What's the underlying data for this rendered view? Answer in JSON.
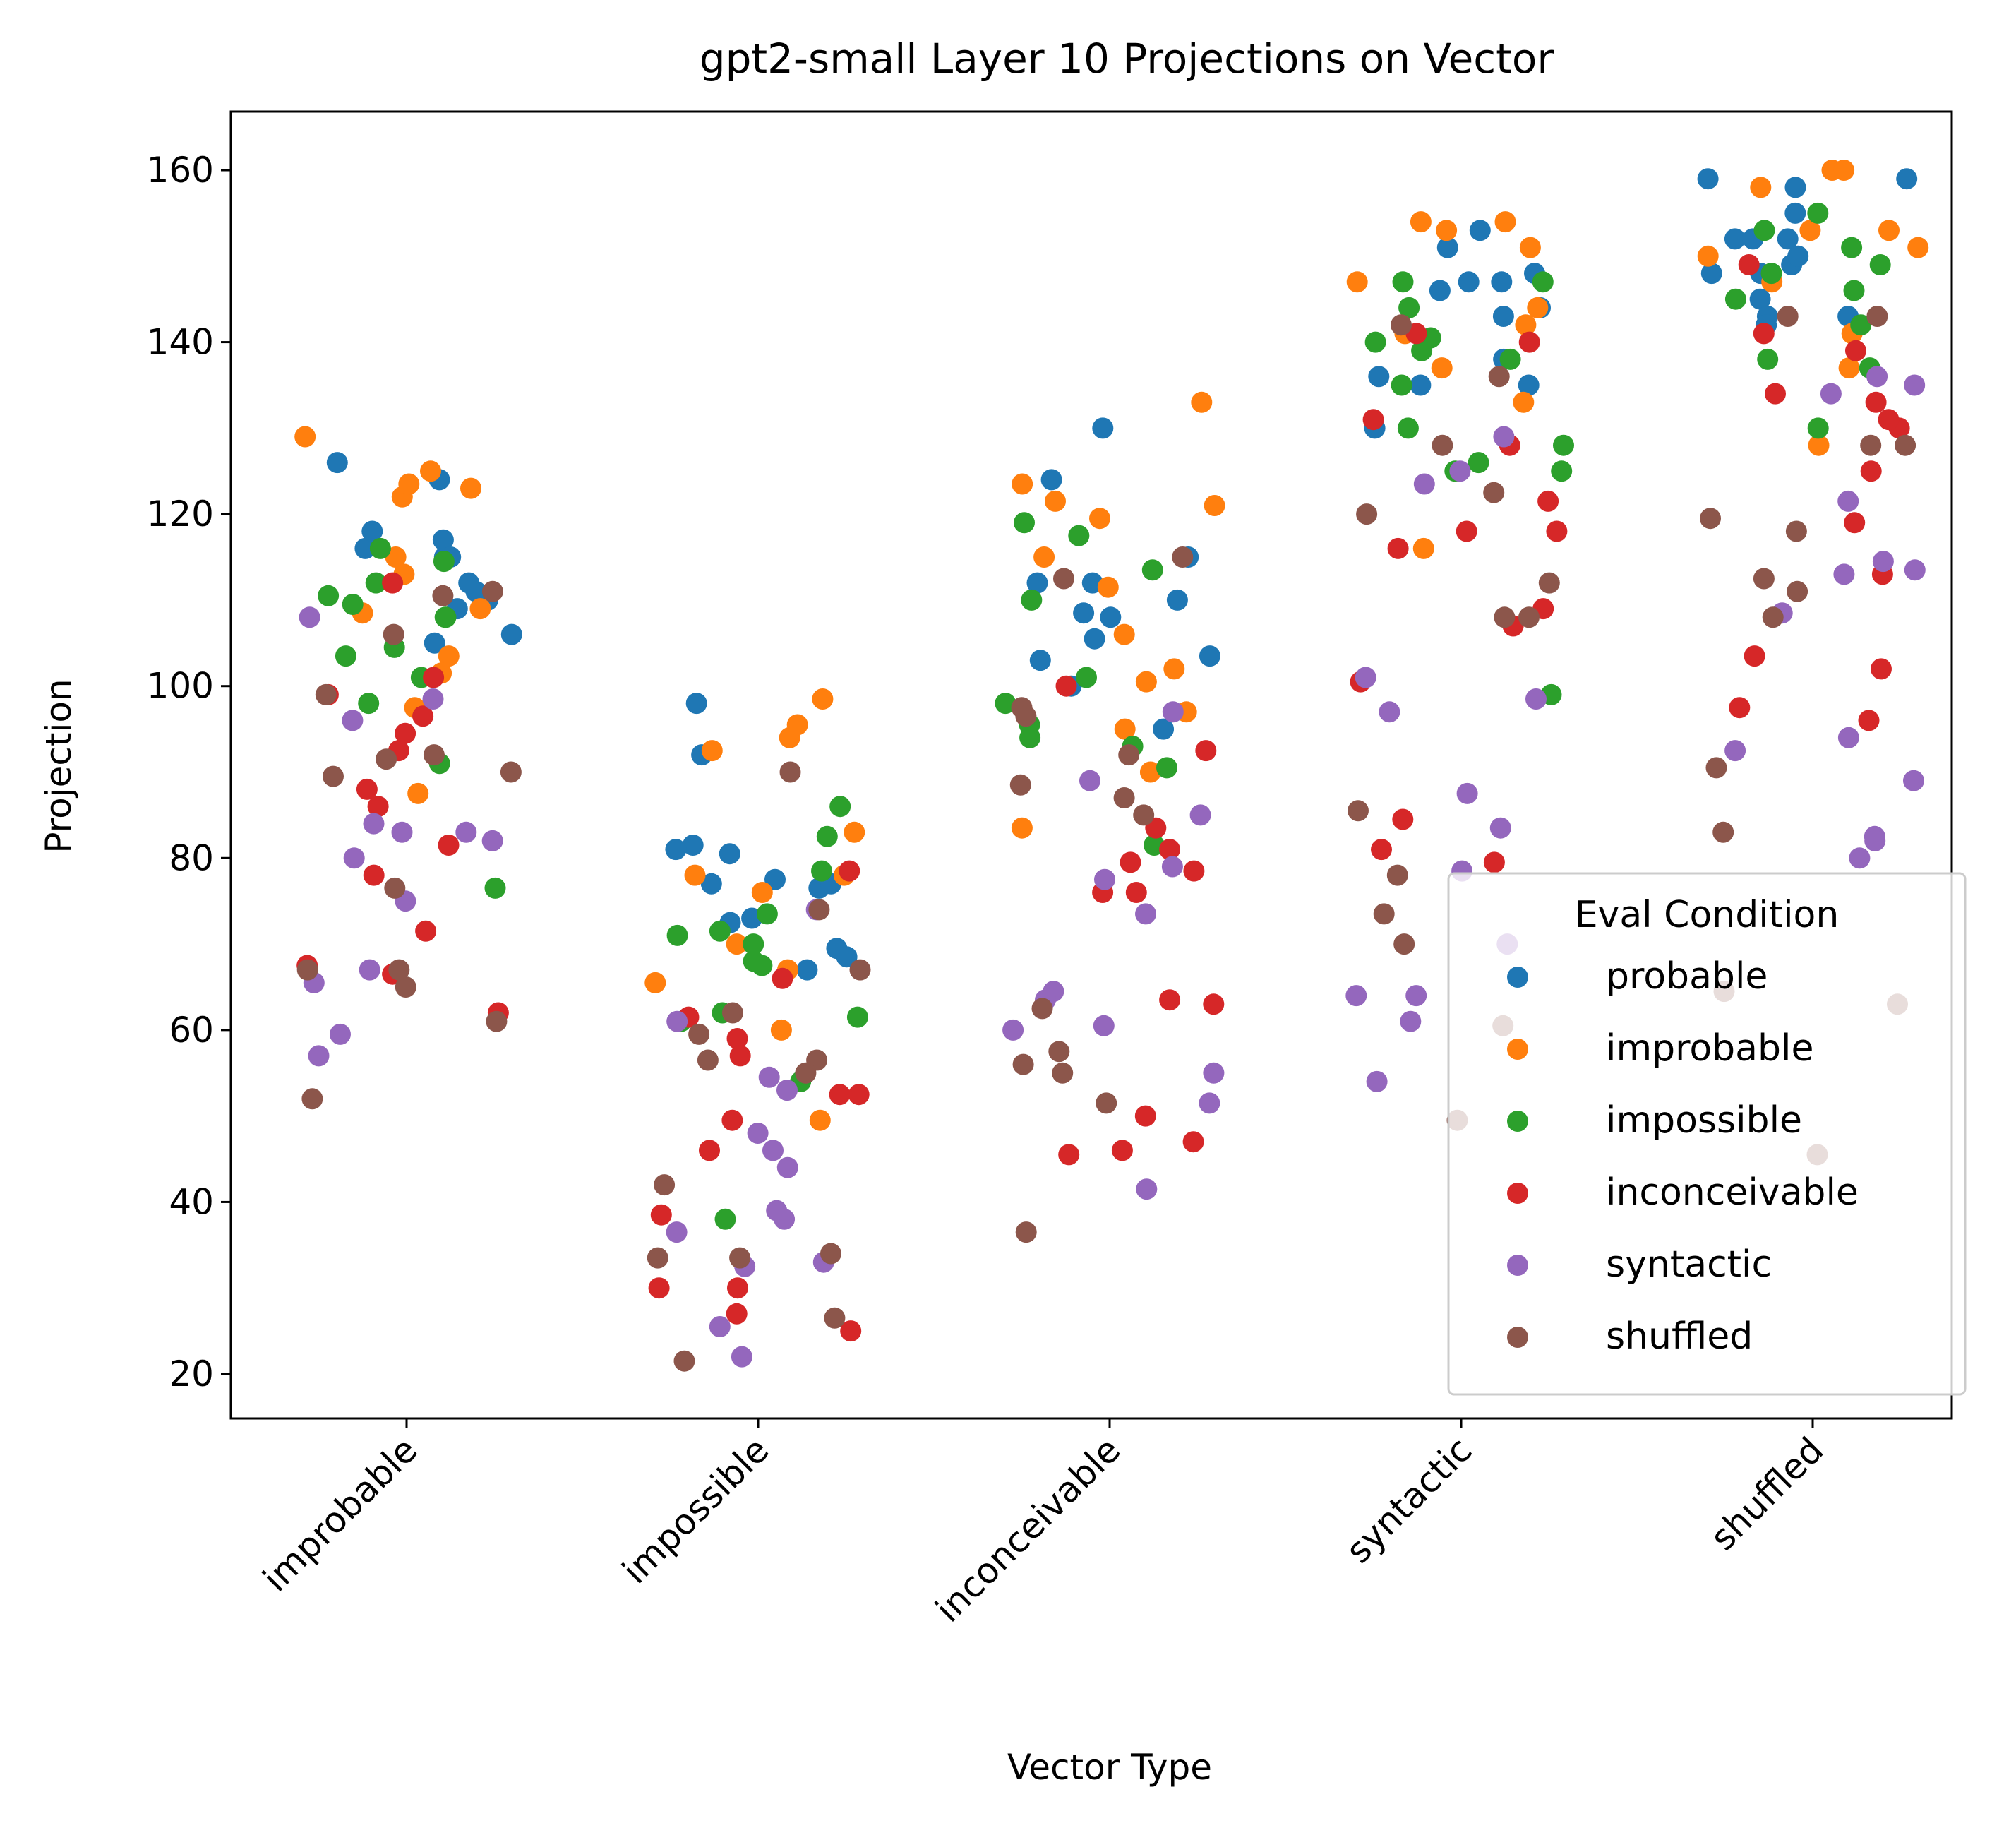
{
  "chart_data": {
    "type": "scatter",
    "subtype": "strip",
    "title": "gpt2-small Layer 10 Projections on Vector",
    "xlabel": "Vector Type",
    "ylabel": "Projection",
    "categories": [
      "improbable",
      "impossible",
      "inconceivable",
      "syntactic",
      "shuffled"
    ],
    "ylim": [
      15,
      167
    ],
    "yticks": [
      20,
      40,
      60,
      80,
      100,
      120,
      140,
      160
    ],
    "grid": false,
    "legend": {
      "title": "Eval Condition",
      "placement": "lower-right"
    },
    "series": [
      {
        "name": "probable",
        "color": "#1f77b4",
        "values": [
          [
            124,
            116,
            105,
            106,
            115,
            117,
            126,
            110,
            115,
            111,
            109,
            118,
            112
          ],
          [
            81.5,
            77.5,
            92,
            98,
            76.5,
            69.5,
            77,
            81,
            73,
            67,
            80.5,
            77,
            72.5,
            68.5
          ],
          [
            115,
            112,
            105.5,
            110,
            103,
            112,
            100,
            108.5,
            108,
            103.5,
            130,
            95,
            124
          ],
          [
            151,
            144,
            135,
            135,
            147,
            148,
            138,
            136,
            153,
            130,
            147,
            146,
            143
          ],
          [
            148,
            152,
            149,
            158,
            159,
            150,
            148,
            145,
            152,
            143,
            159,
            143,
            142,
            155,
            152
          ]
        ]
      },
      {
        "name": "improbable",
        "color": "#ff7f0e",
        "values": [
          [
            123,
            122,
            97.5,
            109,
            125,
            103.5,
            129,
            87.5,
            115,
            123.5,
            101.5,
            108.5,
            113
          ],
          [
            83,
            78,
            76,
            78,
            60,
            65.5,
            67,
            94,
            70,
            98.5,
            95.5,
            92.5,
            49.5
          ],
          [
            121,
            111.5,
            115,
            106,
            100.5,
            97,
            95,
            90,
            83.5,
            133,
            123.5,
            121.5,
            119.5,
            102
          ],
          [
            154,
            144,
            141,
            142,
            137,
            153,
            147,
            116,
            154,
            151,
            133
          ],
          [
            151,
            160,
            153,
            147,
            150,
            158,
            128,
            160,
            141,
            137,
            153
          ]
        ]
      },
      {
        "name": "impossible",
        "color": "#2ca02c",
        "values": [
          [
            91,
            76.5,
            108,
            110.5,
            101,
            103.5,
            114.5,
            104.5,
            98,
            108,
            112,
            116,
            109.5
          ],
          [
            62,
            71,
            73.5,
            61.5,
            54,
            67.5,
            82.5,
            78.5,
            71.5,
            70,
            68,
            61,
            86,
            38
          ],
          [
            98,
            93,
            101,
            119,
            110,
            95.5,
            94,
            90.5,
            81.5,
            113.5,
            117.5
          ],
          [
            135,
            125,
            99,
            139,
            140,
            147,
            140.5,
            128,
            147,
            130,
            126,
            125,
            144,
            138
          ],
          [
            148,
            149,
            138,
            155,
            142,
            130,
            146,
            151,
            153,
            145,
            137
          ]
        ]
      },
      {
        "name": "inconceivable",
        "color": "#d62728",
        "values": [
          [
            67.5,
            99,
            94.5,
            92.5,
            86,
            81.5,
            101,
            96.5,
            78,
            66.5,
            112,
            71.5,
            88,
            62
          ],
          [
            78.5,
            66,
            59,
            52.5,
            46,
            38.5,
            30,
            27,
            25,
            52.5,
            30,
            57,
            49.5,
            61.5
          ],
          [
            78.5,
            100,
            92.5,
            83.5,
            63,
            63.5,
            76,
            50,
            47,
            45.5,
            81,
            79.5,
            76,
            46
          ],
          [
            131,
            121.5,
            107,
            100.5,
            79.5,
            141,
            140,
            128,
            118,
            118,
            109,
            116,
            81,
            84.5
          ],
          [
            130,
            133,
            141,
            134,
            131,
            125,
            119,
            139,
            149,
            113,
            102,
            96,
            103.5,
            97.5
          ]
        ]
      },
      {
        "name": "syntactic",
        "color": "#9467bd",
        "values": [
          [
            57,
            96,
            84,
            83,
            75,
            65.5,
            67,
            98.5,
            82,
            59.5,
            108,
            80,
            83
          ],
          [
            48,
            53,
            46,
            36.5,
            33,
            32.5,
            44,
            38,
            25.5,
            61,
            39,
            54.5,
            74,
            22
          ],
          [
            60,
            55,
            79,
            97,
            64.5,
            63.5,
            73.5,
            85,
            89,
            60.5,
            51.5,
            41.5,
            77.5
          ],
          [
            83.5,
            87.5,
            78.5,
            129,
            70,
            64,
            61,
            101,
            97,
            98.5,
            125,
            123.5,
            64,
            54
          ],
          [
            135,
            136,
            134,
            89,
            82.5,
            80,
            114.5,
            113.5,
            113,
            94,
            92.5,
            82,
            108.5,
            121.5
          ]
        ]
      },
      {
        "name": "shuffled",
        "color": "#8c564b",
        "values": [
          [
            65,
            111,
            67,
            67,
            110.5,
            99,
            89.5,
            90,
            91.5,
            76.5,
            52,
            61,
            106,
            92
          ],
          [
            67,
            74,
            56.5,
            62,
            59.5,
            55,
            42,
            33.5,
            34,
            33.5,
            26.5,
            90,
            56.5,
            21.5
          ],
          [
            97.5,
            92,
            87,
            85,
            88.5,
            55,
            57.5,
            56,
            62.5,
            36.5,
            112.5,
            115,
            96.5,
            51.5
          ],
          [
            112,
            120,
            108,
            136,
            128,
            85.5,
            73.5,
            78,
            60.5,
            108,
            122.5,
            142,
            49.5,
            70
          ],
          [
            128,
            119.5,
            112.5,
            108,
            143,
            118,
            111,
            83,
            90.5,
            63,
            64.5,
            45.5,
            128,
            143
          ]
        ]
      }
    ]
  }
}
